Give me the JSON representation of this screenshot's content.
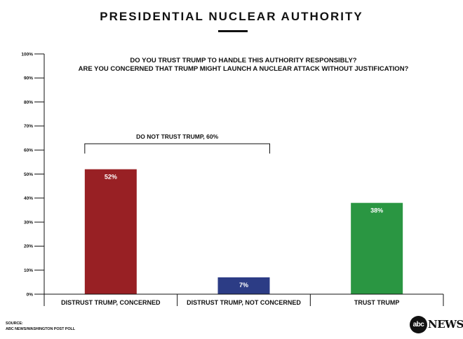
{
  "title": "PRESIDENTIAL NUCLEAR AUTHORITY",
  "source": {
    "label": "SOURCE:",
    "name": "ABC NEWS/WASHINGTON POST POLL"
  },
  "logo": {
    "mark": "abc",
    "word": "NEWS"
  },
  "chart_data": {
    "type": "bar",
    "questions": [
      "DO YOU TRUST TRUMP TO HANDLE THIS AUTHORITY RESPONSIBLY?",
      "ARE YOU CONCERNED THAT TRUMP MIGHT LAUNCH A NUCLEAR ATTACK WITHOUT JUSTIFICATION?"
    ],
    "categories": [
      "DISTRUST TRUMP, CONCERNED",
      "DISTRUST TRUMP, NOT CONCERNED",
      "TRUST TRUMP"
    ],
    "values": [
      52,
      7,
      38
    ],
    "labels": [
      "52%",
      "7%",
      "38%"
    ],
    "colors": [
      "#982024",
      "#2c3c85",
      "#2a9642"
    ],
    "ylim": [
      0,
      100
    ],
    "yticks": [
      "0%",
      "10%",
      "20%",
      "30%",
      "40%",
      "50%",
      "60%",
      "70%",
      "80%",
      "90%",
      "100%"
    ],
    "bracket": {
      "label": "DO NOT TRUST TRUMP, 60%",
      "value": 60,
      "from_category": 0,
      "to_category": 1
    },
    "xlabel": "",
    "ylabel": ""
  }
}
